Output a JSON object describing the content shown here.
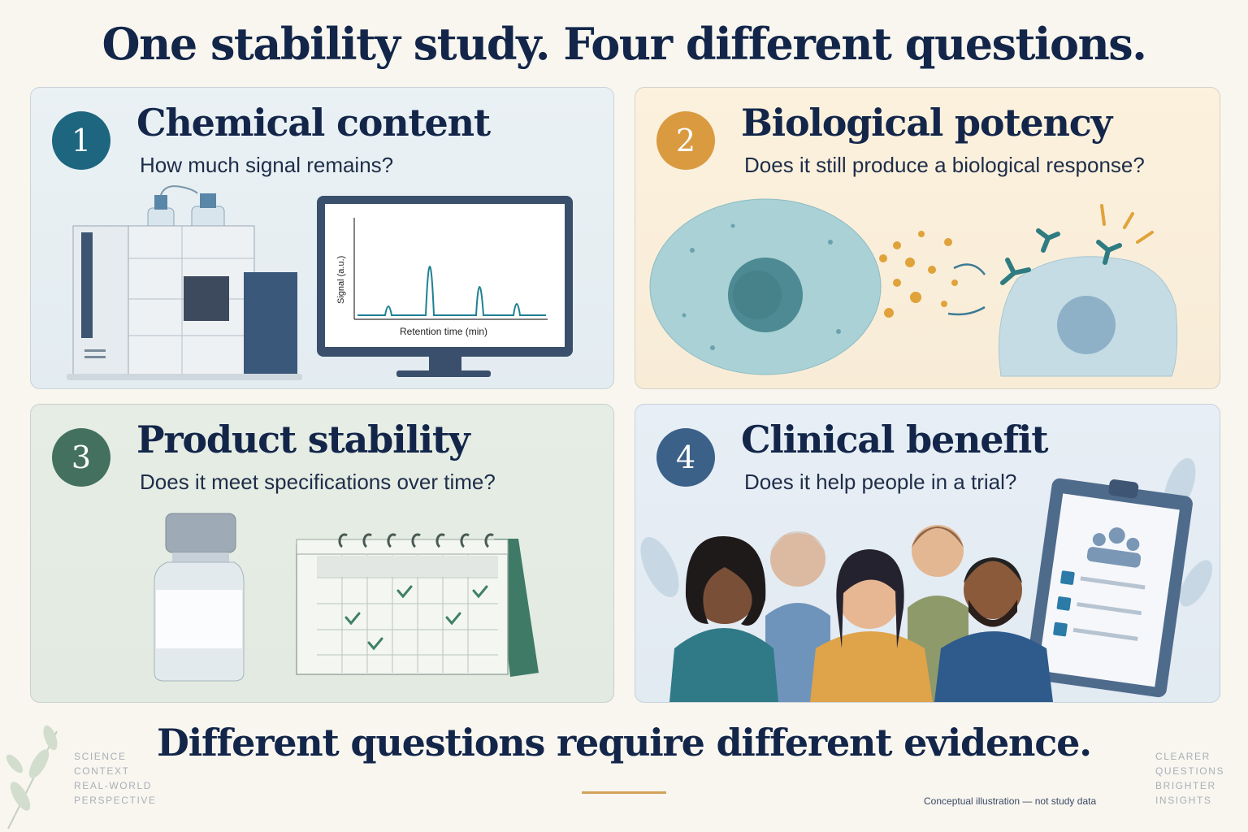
{
  "title": "One stability study. Four different questions.",
  "panels": [
    {
      "number": "1",
      "title": "Chemical content",
      "question": "How much signal remains?",
      "color": "#1e6680"
    },
    {
      "number": "2",
      "title": "Biological potency",
      "question": "Does it still produce a biological response?",
      "color": "#d99a40"
    },
    {
      "number": "3",
      "title": "Product stability",
      "question": "Does it meet specifications over time?",
      "color": "#44715f"
    },
    {
      "number": "4",
      "title": "Clinical benefit",
      "question": "Does it help people in a trial?",
      "color": "#3b6189"
    }
  ],
  "chromatogram": {
    "ylabel": "Signal (a.u.)",
    "xlabel": "Retention time (min)"
  },
  "bottom_text": "Different questions require different evidence.",
  "left_tagline": [
    "SCIENCE",
    "CONTEXT",
    "REAL-WORLD",
    "PERSPECTIVE"
  ],
  "right_tagline": [
    "CLEARER",
    "QUESTIONS",
    "BRIGHTER",
    "INSIGHTS"
  ],
  "footnote": "Conceptual illustration — not study data"
}
